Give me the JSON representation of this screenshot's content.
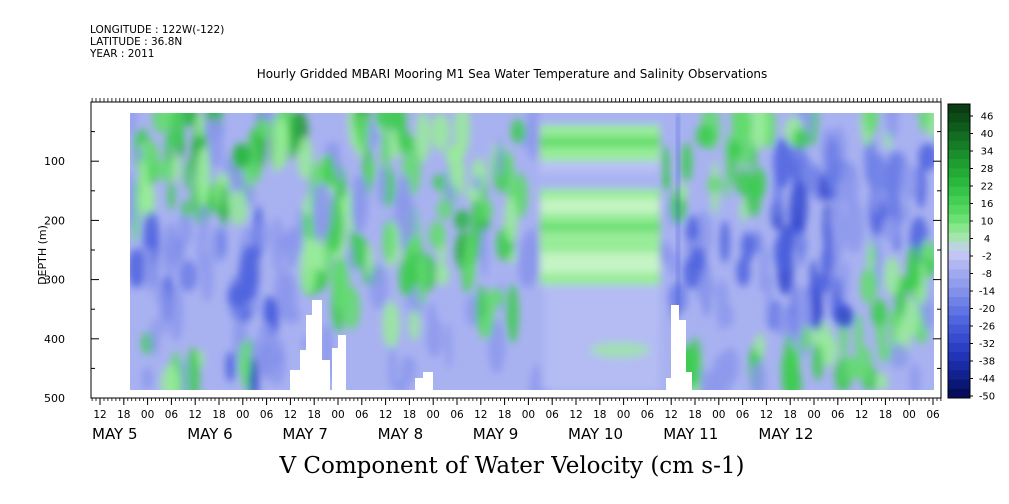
{
  "header": {
    "longitude": "LONGITUDE : 122W(-122)",
    "latitude": "LATITUDE : 36.8N",
    "year": "YEAR : 2011"
  },
  "chart_data": {
    "type": "heatmap",
    "title": "Hourly Gridded MBARI Mooring M1 Sea Water Temperature and Salinity Observations",
    "variable_label": "V Component of Water Velocity (cm s-1)",
    "ylabel": "DEPTH (m)",
    "y_axis": {
      "range": [
        500,
        0
      ],
      "inverted": true,
      "ticks": [
        100,
        200,
        300,
        400,
        500
      ],
      "units": "m"
    },
    "x_axis": {
      "hour_ticks": [
        "12",
        "18",
        "00",
        "06",
        "12",
        "18",
        "00",
        "06",
        "12",
        "18",
        "00",
        "06",
        "12",
        "18",
        "00",
        "06",
        "12",
        "18",
        "00",
        "06",
        "12",
        "18",
        "00",
        "06",
        "12",
        "18",
        "00",
        "06",
        "12",
        "18",
        "00",
        "06",
        "12",
        "18",
        "00",
        "06"
      ],
      "day_labels": [
        "MAY 5",
        "MAY 6",
        "MAY 7",
        "MAY 8",
        "MAY 9",
        "MAY 10",
        "MAY 11",
        "MAY 12"
      ],
      "day_label_hour_offsets": [
        12,
        12,
        12,
        12,
        12,
        12,
        12,
        12
      ]
    },
    "colorbar": {
      "labels": [
        "46",
        "40",
        "34",
        "28",
        "22",
        "16",
        "10",
        "4",
        "-2",
        "-8",
        "-14",
        "-20",
        "-26",
        "-32",
        "-38",
        "-44",
        "-50"
      ],
      "colors": [
        "#0b3d12",
        "#0f5a1c",
        "#157a26",
        "#1d9a30",
        "#27b43c",
        "#3ccc4e",
        "#62dc6c",
        "#98ec98",
        "#c8ccf6",
        "#a8b0f0",
        "#8c98ec",
        "#6c7ee6",
        "#4c62de",
        "#3448cc",
        "#2032b4",
        "#10208c",
        "#060e5c"
      ],
      "range": [
        -50,
        46
      ],
      "interval": 3
    },
    "grid": false
  }
}
